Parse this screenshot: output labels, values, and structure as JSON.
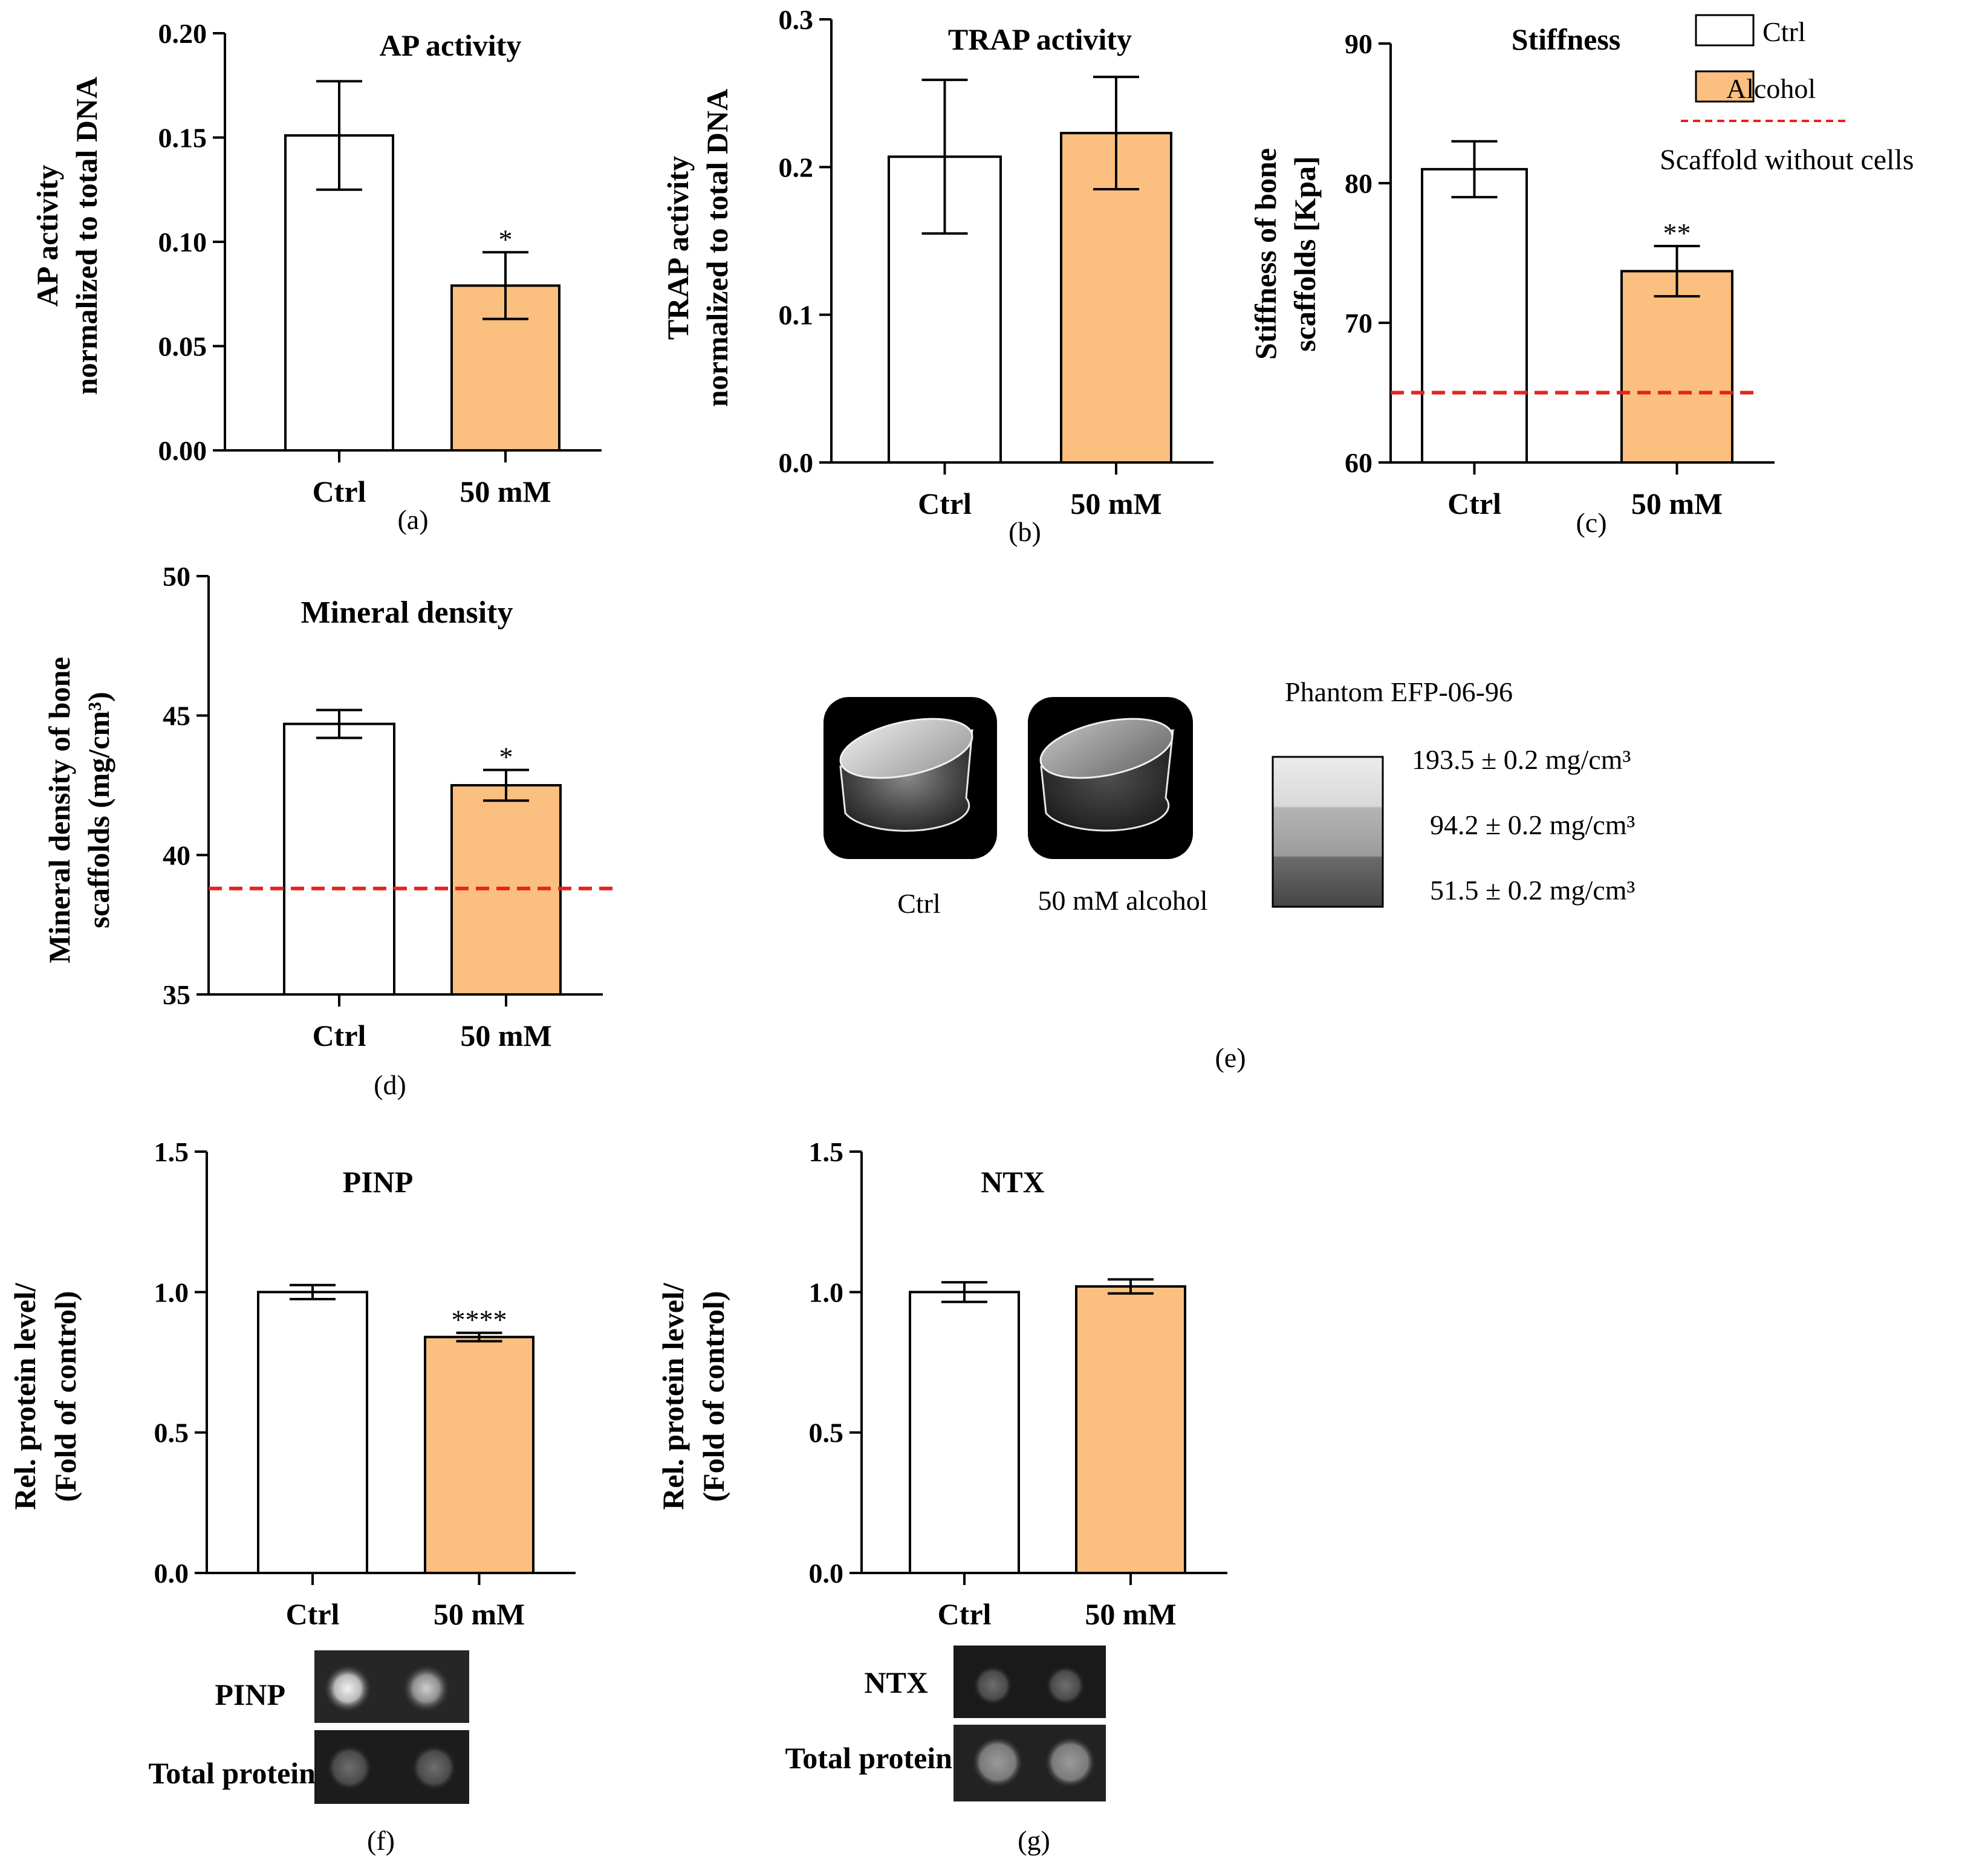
{
  "colors": {
    "ctrl_fill": "#ffffff",
    "alcohol_fill": "#fbbf7f",
    "reference_line": "#e8221e",
    "axis": "#000000"
  },
  "legend": {
    "ctrl": "Ctrl",
    "alcohol": "Alcohol",
    "reference": "Scaffold without cells"
  },
  "panel_e": {
    "phantom_title": "Phantom EFP-06-96",
    "densities": [
      "193.5 ± 0.2 mg/cm³",
      "94.2 ± 0.2 mg/cm³",
      "51.5 ± 0.2 mg/cm³"
    ],
    "ctrl_label": "Ctrl",
    "alcohol_label": "50 mM alcohol",
    "panel_label": "(e)"
  },
  "panel_f_blot": {
    "row1": "PINP",
    "row2": "Total protein"
  },
  "panel_g_blot": {
    "row1": "NTX",
    "row2": "Total protein"
  },
  "chart_data": [
    {
      "id": "a",
      "type": "bar",
      "title": "AP activity",
      "panel_label": "(a)",
      "ylabel": [
        "AP activity",
        "normalized to total DNA"
      ],
      "categories": [
        "Ctrl",
        "50 mM"
      ],
      "values": [
        0.151,
        0.079
      ],
      "errors": [
        0.026,
        0.016
      ],
      "significance": [
        "",
        "*"
      ],
      "ylim": [
        0,
        0.2
      ],
      "yticks": [
        "0.00",
        "0.05",
        "0.10",
        "0.15",
        "0.20"
      ]
    },
    {
      "id": "b",
      "type": "bar",
      "title": "TRAP activity",
      "panel_label": "(b)",
      "ylabel": [
        "TRAP activity",
        "normalized to total DNA"
      ],
      "categories": [
        "Ctrl",
        "50 mM"
      ],
      "values": [
        0.207,
        0.223
      ],
      "errors": [
        0.052,
        0.038
      ],
      "significance": [
        "",
        ""
      ],
      "ylim": [
        0,
        0.3
      ],
      "yticks": [
        "0.0",
        "0.1",
        "0.2",
        "0.3"
      ]
    },
    {
      "id": "c",
      "type": "bar",
      "title": "Stiffness",
      "panel_label": "(c)",
      "ylabel": [
        "Stiffness of bone",
        "scaffolds [Kpa]"
      ],
      "categories": [
        "Ctrl",
        "50 mM"
      ],
      "values": [
        81.0,
        73.7
      ],
      "errors": [
        2.0,
        1.8
      ],
      "significance": [
        "",
        "**"
      ],
      "reference": 65,
      "ylim": [
        60,
        90
      ],
      "yticks": [
        "60",
        "70",
        "80",
        "90"
      ]
    },
    {
      "id": "d",
      "type": "bar",
      "title": "Mineral density",
      "panel_label": "(d)",
      "ylabel": [
        "Mineral density of bone",
        "scaffolds (mg/cm³)"
      ],
      "categories": [
        "Ctrl",
        "50 mM"
      ],
      "values": [
        44.7,
        42.5
      ],
      "errors": [
        0.5,
        0.55
      ],
      "significance": [
        "",
        "*"
      ],
      "reference": 38.8,
      "ylim": [
        35,
        50
      ],
      "yticks": [
        "35",
        "40",
        "45",
        "50"
      ]
    },
    {
      "id": "f",
      "type": "bar",
      "title": "PINP",
      "panel_label": "(f)",
      "ylabel": [
        "Rel. protein level/",
        "(Fold of control)"
      ],
      "categories": [
        "Ctrl",
        "50 mM"
      ],
      "values": [
        1.0,
        0.84
      ],
      "errors": [
        0.025,
        0.015
      ],
      "significance": [
        "",
        "****"
      ],
      "ylim": [
        0,
        1.5
      ],
      "yticks": [
        "0.0",
        "0.5",
        "1.0",
        "1.5"
      ]
    },
    {
      "id": "g",
      "type": "bar",
      "title": "NTX",
      "panel_label": "(g)",
      "ylabel": [
        "Rel. protein level/",
        "(Fold of control)"
      ],
      "categories": [
        "Ctrl",
        "50 mM"
      ],
      "values": [
        1.0,
        1.02
      ],
      "errors": [
        0.035,
        0.025
      ],
      "significance": [
        "",
        ""
      ],
      "ylim": [
        0,
        1.5
      ],
      "yticks": [
        "0.0",
        "0.5",
        "1.0",
        "1.5"
      ]
    }
  ]
}
